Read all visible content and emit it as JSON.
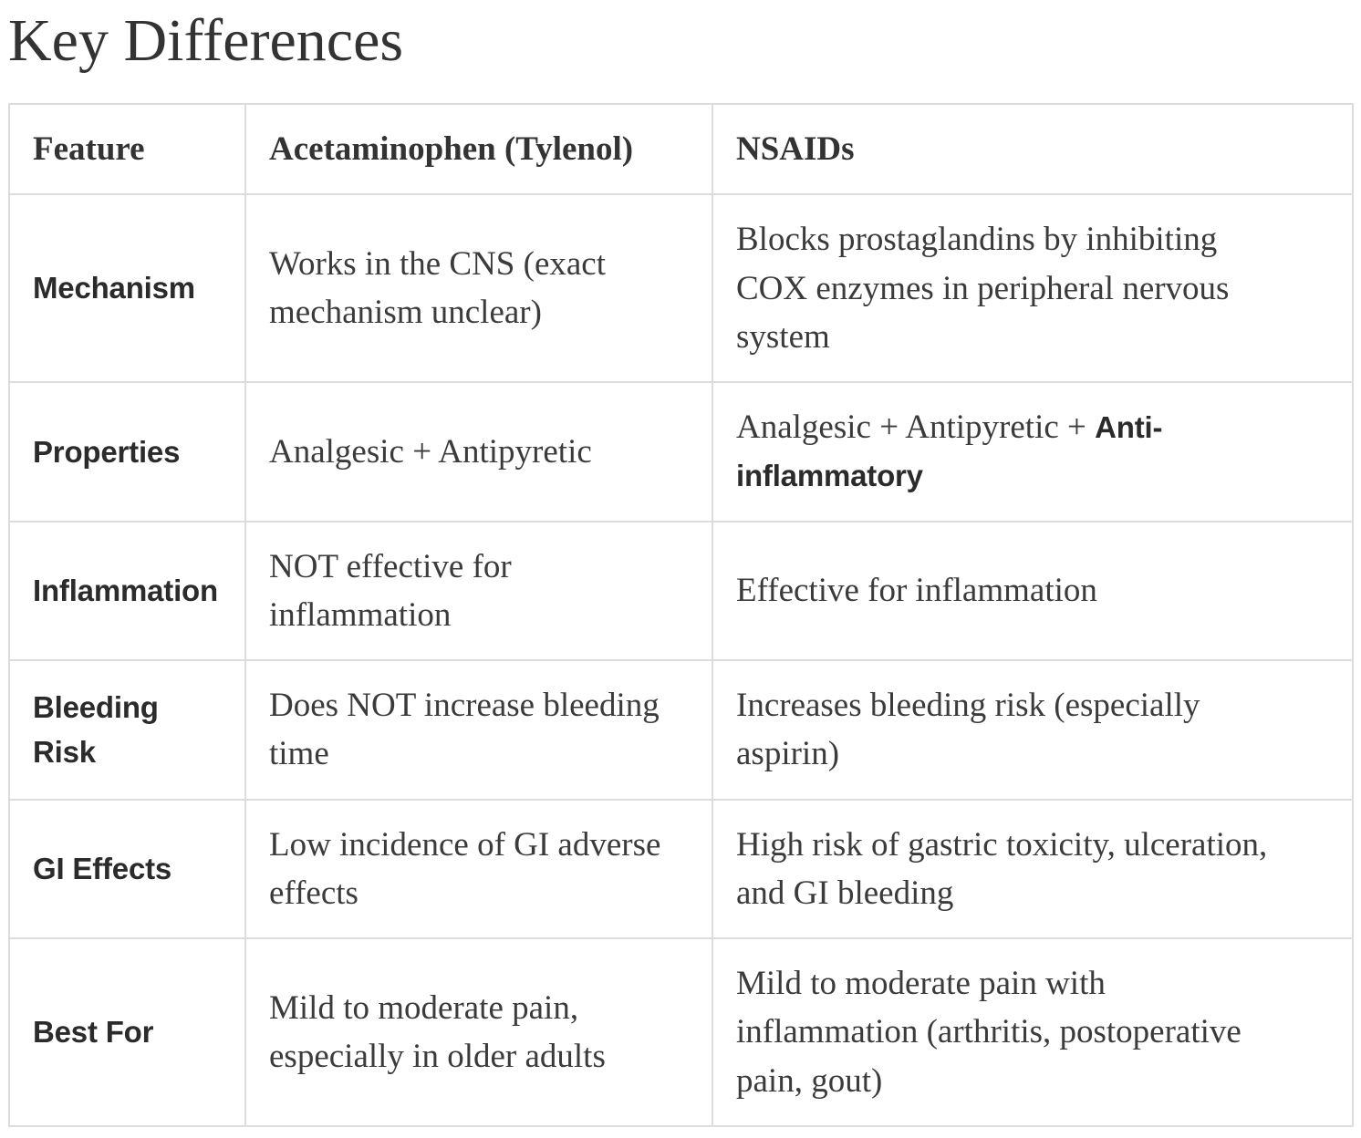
{
  "title": "Key Differences",
  "colors": {
    "background": "#ffffff",
    "border": "#dcdcdc",
    "title_text": "#333333",
    "body_text": "#3b3b3b",
    "label_text": "#2b2b2b"
  },
  "table": {
    "headers": [
      "Feature",
      "Acetaminophen (Tylenol)",
      "NSAIDs"
    ],
    "rows": [
      {
        "feature": "Mechanism",
        "acetaminophen": "Works in the CNS (exact mechanism unclear)",
        "nsaids": "Blocks prostaglandins by inhibiting COX enzymes in peripheral nervous system"
      },
      {
        "feature": "Properties",
        "acetaminophen": "Analgesic + Antipyretic",
        "nsaids_regular": "Analgesic + Antipyretic + ",
        "nsaids_bold": "Anti-inflammatory"
      },
      {
        "feature": "Inflammation",
        "acetaminophen": "NOT effective for inflammation",
        "nsaids": "Effective for inflammation"
      },
      {
        "feature": "Bleeding Risk",
        "acetaminophen": "Does NOT increase bleeding time",
        "nsaids": "Increases bleeding risk (especially aspirin)"
      },
      {
        "feature": "GI Effects",
        "acetaminophen": "Low incidence of GI adverse effects",
        "nsaids": "High risk of gastric toxicity, ulceration, and GI bleeding"
      },
      {
        "feature": "Best For",
        "acetaminophen": "Mild to moderate pain, especially in older adults",
        "nsaids": "Mild to moderate pain with inflammation (arthritis, postoperative pain, gout)"
      }
    ]
  }
}
